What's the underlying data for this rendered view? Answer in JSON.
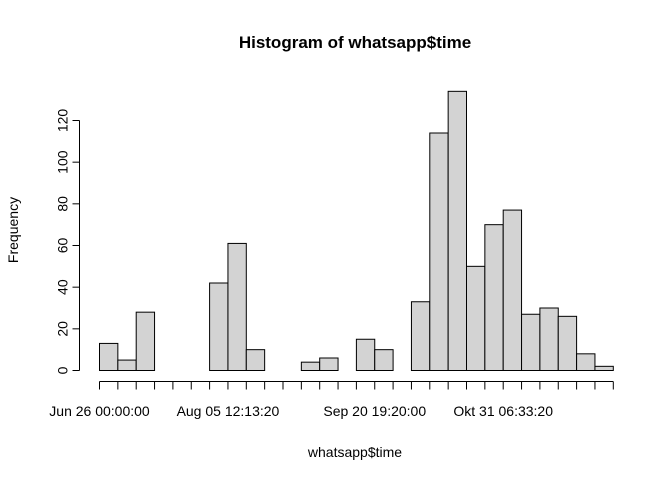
{
  "chart_data": {
    "type": "bar",
    "title": "Histogram of whatsapp$time",
    "xlabel": "whatsapp$time",
    "ylabel": "Frequency",
    "ylim": [
      0,
      140
    ],
    "y_ticks": [
      "0",
      "20",
      "40",
      "60",
      "80",
      "100",
      "120"
    ],
    "x_tick_labels": [
      "Jun 26 00:00:00",
      "Aug 05 12:13:20",
      "Sep 20 19:20:00",
      "Okt 31 06:33:20"
    ],
    "bin_count": 28,
    "values": [
      13,
      5,
      28,
      0,
      0,
      0,
      42,
      61,
      10,
      0,
      0,
      4,
      6,
      0,
      15,
      10,
      0,
      33,
      114,
      134,
      50,
      70,
      77,
      27,
      30,
      26,
      8,
      2
    ],
    "bar_color": "#d3d3d3",
    "grid": false
  }
}
